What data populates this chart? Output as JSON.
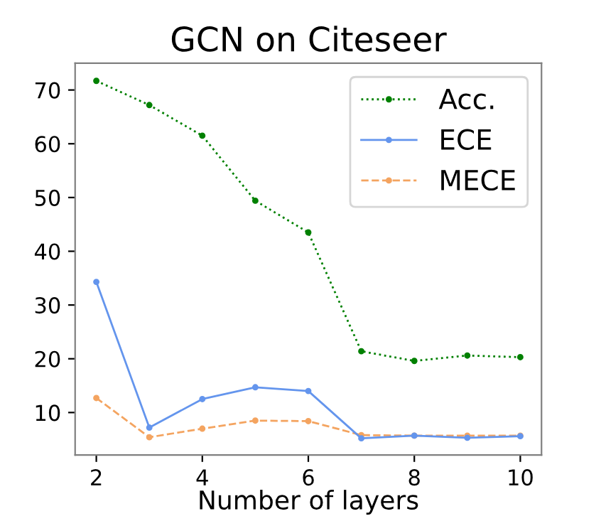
{
  "chart_data": {
    "type": "line",
    "title": "GCN on Citeseer",
    "xlabel": "Number of layers",
    "x": [
      2,
      3,
      4,
      5,
      6,
      7,
      8,
      9,
      10
    ],
    "series": [
      {
        "name": "Acc.",
        "color": "#008000",
        "line_style": "dotted",
        "values": [
          71.7,
          67.2,
          61.5,
          49.4,
          43.5,
          21.4,
          19.6,
          20.6,
          20.3
        ]
      },
      {
        "name": "ECE",
        "color": "#6495ed",
        "line_style": "solid",
        "values": [
          34.3,
          7.2,
          12.5,
          14.7,
          14.0,
          5.2,
          5.7,
          5.3,
          5.6
        ]
      },
      {
        "name": "MECE",
        "color": "#f4a460",
        "line_style": "dashed",
        "values": [
          12.7,
          5.4,
          7.0,
          8.5,
          8.4,
          5.8,
          5.7,
          5.7,
          5.7
        ]
      }
    ],
    "marker": "circle",
    "xlim": [
      1.6,
      10.4
    ],
    "ylim": [
      2.1,
      75
    ],
    "xticks": [
      2,
      4,
      6,
      8,
      10
    ],
    "yticks": [
      10,
      20,
      30,
      40,
      50,
      60,
      70
    ],
    "grid": false,
    "legend": "top right"
  }
}
